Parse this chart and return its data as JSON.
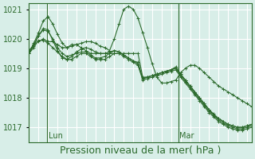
{
  "bg_color": "#d8eee8",
  "grid_color": "#ffffff",
  "line_color": "#2d6b2d",
  "marker_color": "#2d6b2d",
  "ylim": [
    1016.5,
    1021.2
  ],
  "yticks": [
    1017,
    1018,
    1019,
    1020,
    1021
  ],
  "xlabel": "Pression niveau de la mer( hPa )",
  "xlabel_fontsize": 9,
  "tick_fontsize": 7,
  "day_labels": [
    "Lun",
    "Mar"
  ],
  "day_positions": [
    0.08,
    0.67
  ],
  "title": "",
  "n_points": 48,
  "series": [
    [
      1019.6,
      1019.8,
      1019.9,
      1020.0,
      1019.9,
      1019.9,
      1019.8,
      1019.7,
      1019.7,
      1019.8,
      1019.8,
      1019.7,
      1019.6,
      1019.5,
      1019.5,
      1019.5,
      1019.5,
      1019.5,
      1019.5,
      1019.5,
      1019.5,
      1019.5,
      1019.5,
      1019.5,
      1018.7,
      1018.7,
      1018.75,
      1018.8,
      1018.85,
      1018.9,
      1018.95,
      1019.0,
      1018.8,
      1018.6,
      1018.4,
      1018.2,
      1018.0,
      1017.8,
      1017.6,
      1017.4,
      1017.3,
      1017.2,
      1017.1,
      1017.05,
      1017.0,
      1017.0,
      1017.05,
      1017.1
    ],
    [
      1019.5,
      1019.7,
      1019.95,
      1019.95,
      1019.85,
      1019.7,
      1019.55,
      1019.4,
      1019.3,
      1019.3,
      1019.4,
      1019.5,
      1019.5,
      1019.4,
      1019.3,
      1019.3,
      1019.3,
      1019.4,
      1019.5,
      1019.5,
      1019.4,
      1019.3,
      1019.2,
      1019.1,
      1018.6,
      1018.65,
      1018.7,
      1018.75,
      1018.8,
      1018.85,
      1018.9,
      1018.95,
      1018.7,
      1018.5,
      1018.3,
      1018.1,
      1017.9,
      1017.7,
      1017.5,
      1017.35,
      1017.2,
      1017.1,
      1017.0,
      1016.95,
      1016.9,
      1016.9,
      1016.95,
      1017.0
    ],
    [
      1019.55,
      1019.75,
      1020.1,
      1020.3,
      1020.25,
      1020.0,
      1019.7,
      1019.5,
      1019.4,
      1019.45,
      1019.5,
      1019.55,
      1019.55,
      1019.45,
      1019.35,
      1019.35,
      1019.4,
      1019.5,
      1019.6,
      1019.55,
      1019.45,
      1019.35,
      1019.25,
      1019.15,
      1018.65,
      1018.7,
      1018.75,
      1018.8,
      1018.85,
      1018.9,
      1018.95,
      1019.0,
      1018.75,
      1018.55,
      1018.35,
      1018.15,
      1017.95,
      1017.75,
      1017.55,
      1017.4,
      1017.25,
      1017.15,
      1017.05,
      1017.0,
      1016.95,
      1016.95,
      1017.0,
      1017.05
    ],
    [
      1019.5,
      1019.8,
      1020.1,
      1020.35,
      1020.3,
      1019.95,
      1019.6,
      1019.35,
      1019.3,
      1019.4,
      1019.55,
      1019.65,
      1019.7,
      1019.65,
      1019.55,
      1019.5,
      1019.5,
      1019.55,
      1019.6,
      1019.55,
      1019.45,
      1019.35,
      1019.25,
      1019.2,
      1018.65,
      1018.7,
      1018.75,
      1018.8,
      1018.85,
      1018.9,
      1018.95,
      1019.05,
      1018.8,
      1018.6,
      1018.4,
      1018.2,
      1018.0,
      1017.8,
      1017.6,
      1017.45,
      1017.3,
      1017.2,
      1017.1,
      1017.05,
      1017.0,
      1017.0,
      1017.05,
      1017.1
    ],
    [
      1019.5,
      1019.85,
      1020.2,
      1020.6,
      1020.75,
      1020.5,
      1020.15,
      1019.85,
      1019.7,
      1019.75,
      1019.8,
      1019.85,
      1019.9,
      1019.9,
      1019.85,
      1019.75,
      1019.7,
      1019.6,
      1020.0,
      1020.5,
      1021.0,
      1021.1,
      1021.0,
      1020.7,
      1020.2,
      1019.7,
      1019.15,
      1018.7,
      1018.5,
      1018.5,
      1018.55,
      1018.6,
      1018.85,
      1019.0,
      1019.1,
      1019.1,
      1019.0,
      1018.85,
      1018.7,
      1018.55,
      1018.4,
      1018.3,
      1018.2,
      1018.1,
      1018.0,
      1017.9,
      1017.8,
      1017.7
    ]
  ]
}
